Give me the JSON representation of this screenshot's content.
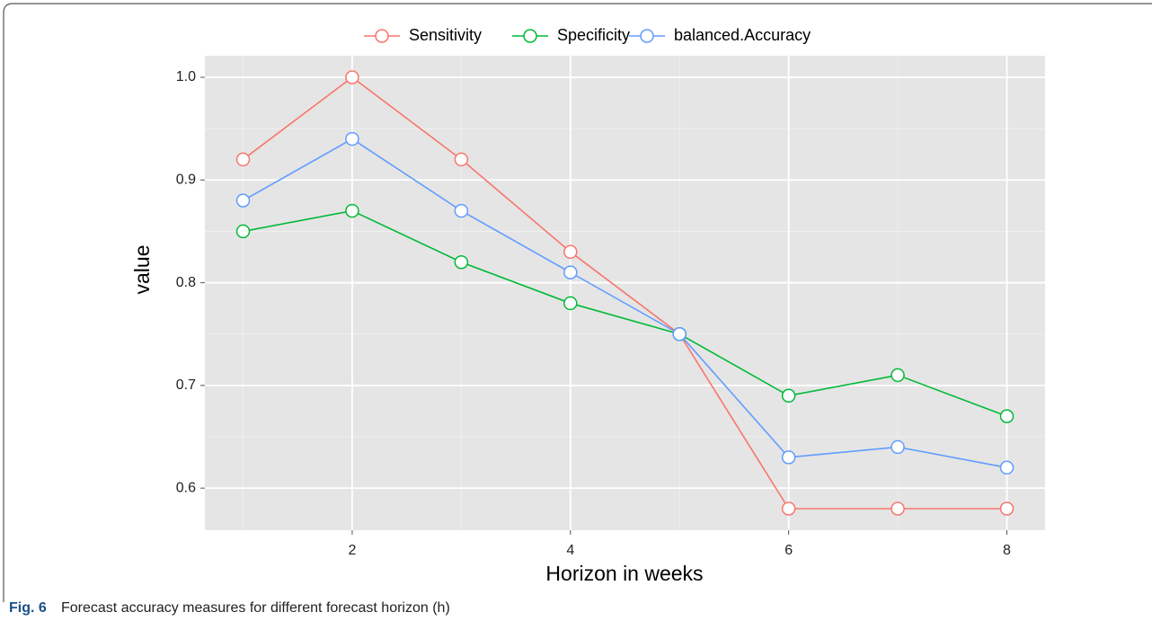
{
  "chart_data": {
    "type": "line",
    "x": [
      1,
      2,
      3,
      4,
      5,
      6,
      7,
      8
    ],
    "series": [
      {
        "name": "Sensitivity",
        "color": "#F8766D",
        "values": [
          0.92,
          1.0,
          0.92,
          0.83,
          0.75,
          0.58,
          0.58,
          0.58
        ]
      },
      {
        "name": "Specificity",
        "color": "#00BA38",
        "values": [
          0.85,
          0.87,
          0.82,
          0.78,
          0.75,
          0.69,
          0.71,
          0.67
        ]
      },
      {
        "name": "balanced.Accuracy",
        "color": "#619CFF",
        "values": [
          0.88,
          0.94,
          0.87,
          0.81,
          0.75,
          0.63,
          0.64,
          0.62
        ]
      }
    ],
    "xlim": [
      0.65,
      8.35
    ],
    "xticks": [
      2,
      4,
      6,
      8
    ],
    "ylim": [
      0.559,
      1.021
    ],
    "yticks": [
      0.6,
      0.7,
      0.8,
      0.9,
      {
        "value": 1,
        "label": "1.0"
      }
    ],
    "x_label": "Horizon in weeks",
    "y_label": "value",
    "grid": true,
    "legend": "top",
    "caption_label": "Fig. 6",
    "caption": "Forecast accuracy measures for different forecast horizon (h)"
  }
}
